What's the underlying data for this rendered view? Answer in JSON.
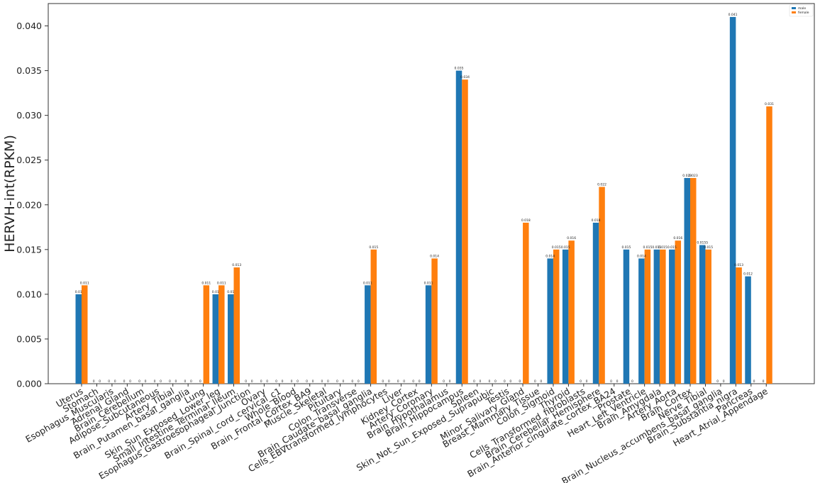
{
  "chart_data": {
    "type": "bar",
    "title": "",
    "xlabel": "",
    "ylabel": "HERVH-int(RPKM)",
    "ylim": [
      0,
      0.0425
    ],
    "yticks": [
      0.0,
      0.005,
      0.01,
      0.015,
      0.02,
      0.025,
      0.03,
      0.035,
      0.04
    ],
    "ytick_labels": [
      "0.000",
      "0.005",
      "0.010",
      "0.015",
      "0.020",
      "0.025",
      "0.030",
      "0.035",
      "0.040"
    ],
    "grid": false,
    "legend_position": "top-right",
    "categories": [
      "Uterus",
      "Stomach",
      "Esophagus_Muscularis",
      "Adrenal_Gland",
      "Brain_Cerebellum",
      "Adipose_Subcutaneous",
      "Artery_Tibial",
      "Brain_Putamen_basal_ganglia",
      "Lung",
      "Skin_Sun_Exposed_Lower_leg",
      "Small_Intestine_Terminal_Ileum",
      "Esophagus_Gastroesophageal_Junction",
      "Ovary",
      "Brain_Spinal_cord_cervical_c1",
      "Whole_Blood",
      "Brain_Frontal_Cortex_BA9",
      "Muscle_Skeletal",
      "Pituitary",
      "Colon_Transverse",
      "Brain_Caudate_basal_ganglia",
      "Cells_EBVtransformed_lymphocytes",
      "Liver",
      "Kidney_Cortex",
      "Artery_Coronary",
      "Brain_Hypothalamus",
      "Brain_Hippocampus",
      "Spleen",
      "Skin_Not_Sun_Exposed_Suprapubic",
      "Testis",
      "Minor_Salivary_Gland",
      "Breast_Mammary_Tissue",
      "Colon_Sigmoid",
      "Thyroid",
      "Cells_Transformed_fibroblasts",
      "Brain_Cerebellar_Hemisphere",
      "Brain_Anterior_cingulate_cortex_BA24",
      "Prostate",
      "Heart_Left_Ventricle",
      "Brain_Amygdala",
      "Artery_Aorta",
      "Brain_Cortex",
      "Nerve_Tibial",
      "Brain_Nucleus_accumbens_basal_ganglia",
      "Brain_Substantia_nigra",
      "Pancreas",
      "Heart_Atrial_Appendage"
    ],
    "series": [
      {
        "name": "male",
        "color": "#1f77b4",
        "values": [
          0.01,
          0,
          0,
          0,
          0,
          0,
          0,
          0,
          0,
          0.01,
          0.01,
          0,
          0,
          0,
          0,
          0,
          0,
          0,
          0,
          0.011,
          0,
          0,
          0,
          0.011,
          0,
          0.035,
          0,
          0,
          0,
          0,
          0,
          0.014,
          0.015,
          0,
          0.018,
          0,
          0.015,
          0.014,
          0.015,
          0.015,
          0.023,
          0.0155,
          0,
          0.041,
          0.012,
          0
        ],
        "labels": [
          "0.01",
          "0",
          "0",
          "0",
          "0",
          "0",
          "0",
          "0",
          "0",
          "0.01",
          "0.01",
          "0",
          "0",
          "0",
          "0",
          "0",
          "0",
          "0",
          "0",
          "0.011",
          "0",
          "0",
          "0",
          "0.011",
          "0",
          "0.035",
          "0",
          "0",
          "0",
          "0",
          "0",
          "0.014",
          "0.015",
          "0",
          "0.018",
          "0",
          "0.015",
          "0.014",
          "0.015",
          "0.015",
          "0.023",
          "0.0155",
          "0",
          "0.041",
          "0.012",
          "0"
        ]
      },
      {
        "name": "female",
        "color": "#ff7f0e",
        "values": [
          0.011,
          0,
          0,
          0,
          0,
          0,
          0,
          0,
          0.011,
          0.011,
          0.013,
          0,
          0,
          0,
          0,
          0,
          0,
          0,
          0,
          0.015,
          0,
          0,
          0,
          0.014,
          0,
          0.034,
          0,
          0,
          0,
          0.018,
          0,
          0.015,
          0.016,
          0,
          0.022,
          0,
          0,
          0.015,
          0.015,
          0.016,
          0.023,
          0.015,
          0,
          0.013,
          0,
          0.031
        ],
        "labels": [
          "0.011",
          "0",
          "0",
          "0",
          "0",
          "0",
          "0",
          "0",
          "0.011",
          "0.011",
          "0.013",
          "0",
          "0",
          "0",
          "0",
          "0",
          "0",
          "0",
          "0",
          "0.015",
          "0",
          "0",
          "0",
          "0.014",
          "0",
          "0.034",
          "0",
          "0",
          "0",
          "0.018",
          "0",
          "0.015",
          "0.016",
          "0",
          "0.022",
          "0",
          "0",
          "0.015",
          "0.015",
          "0.016",
          "0.023",
          "0.015",
          "0",
          "0.013",
          "0",
          "0.031"
        ]
      }
    ]
  }
}
